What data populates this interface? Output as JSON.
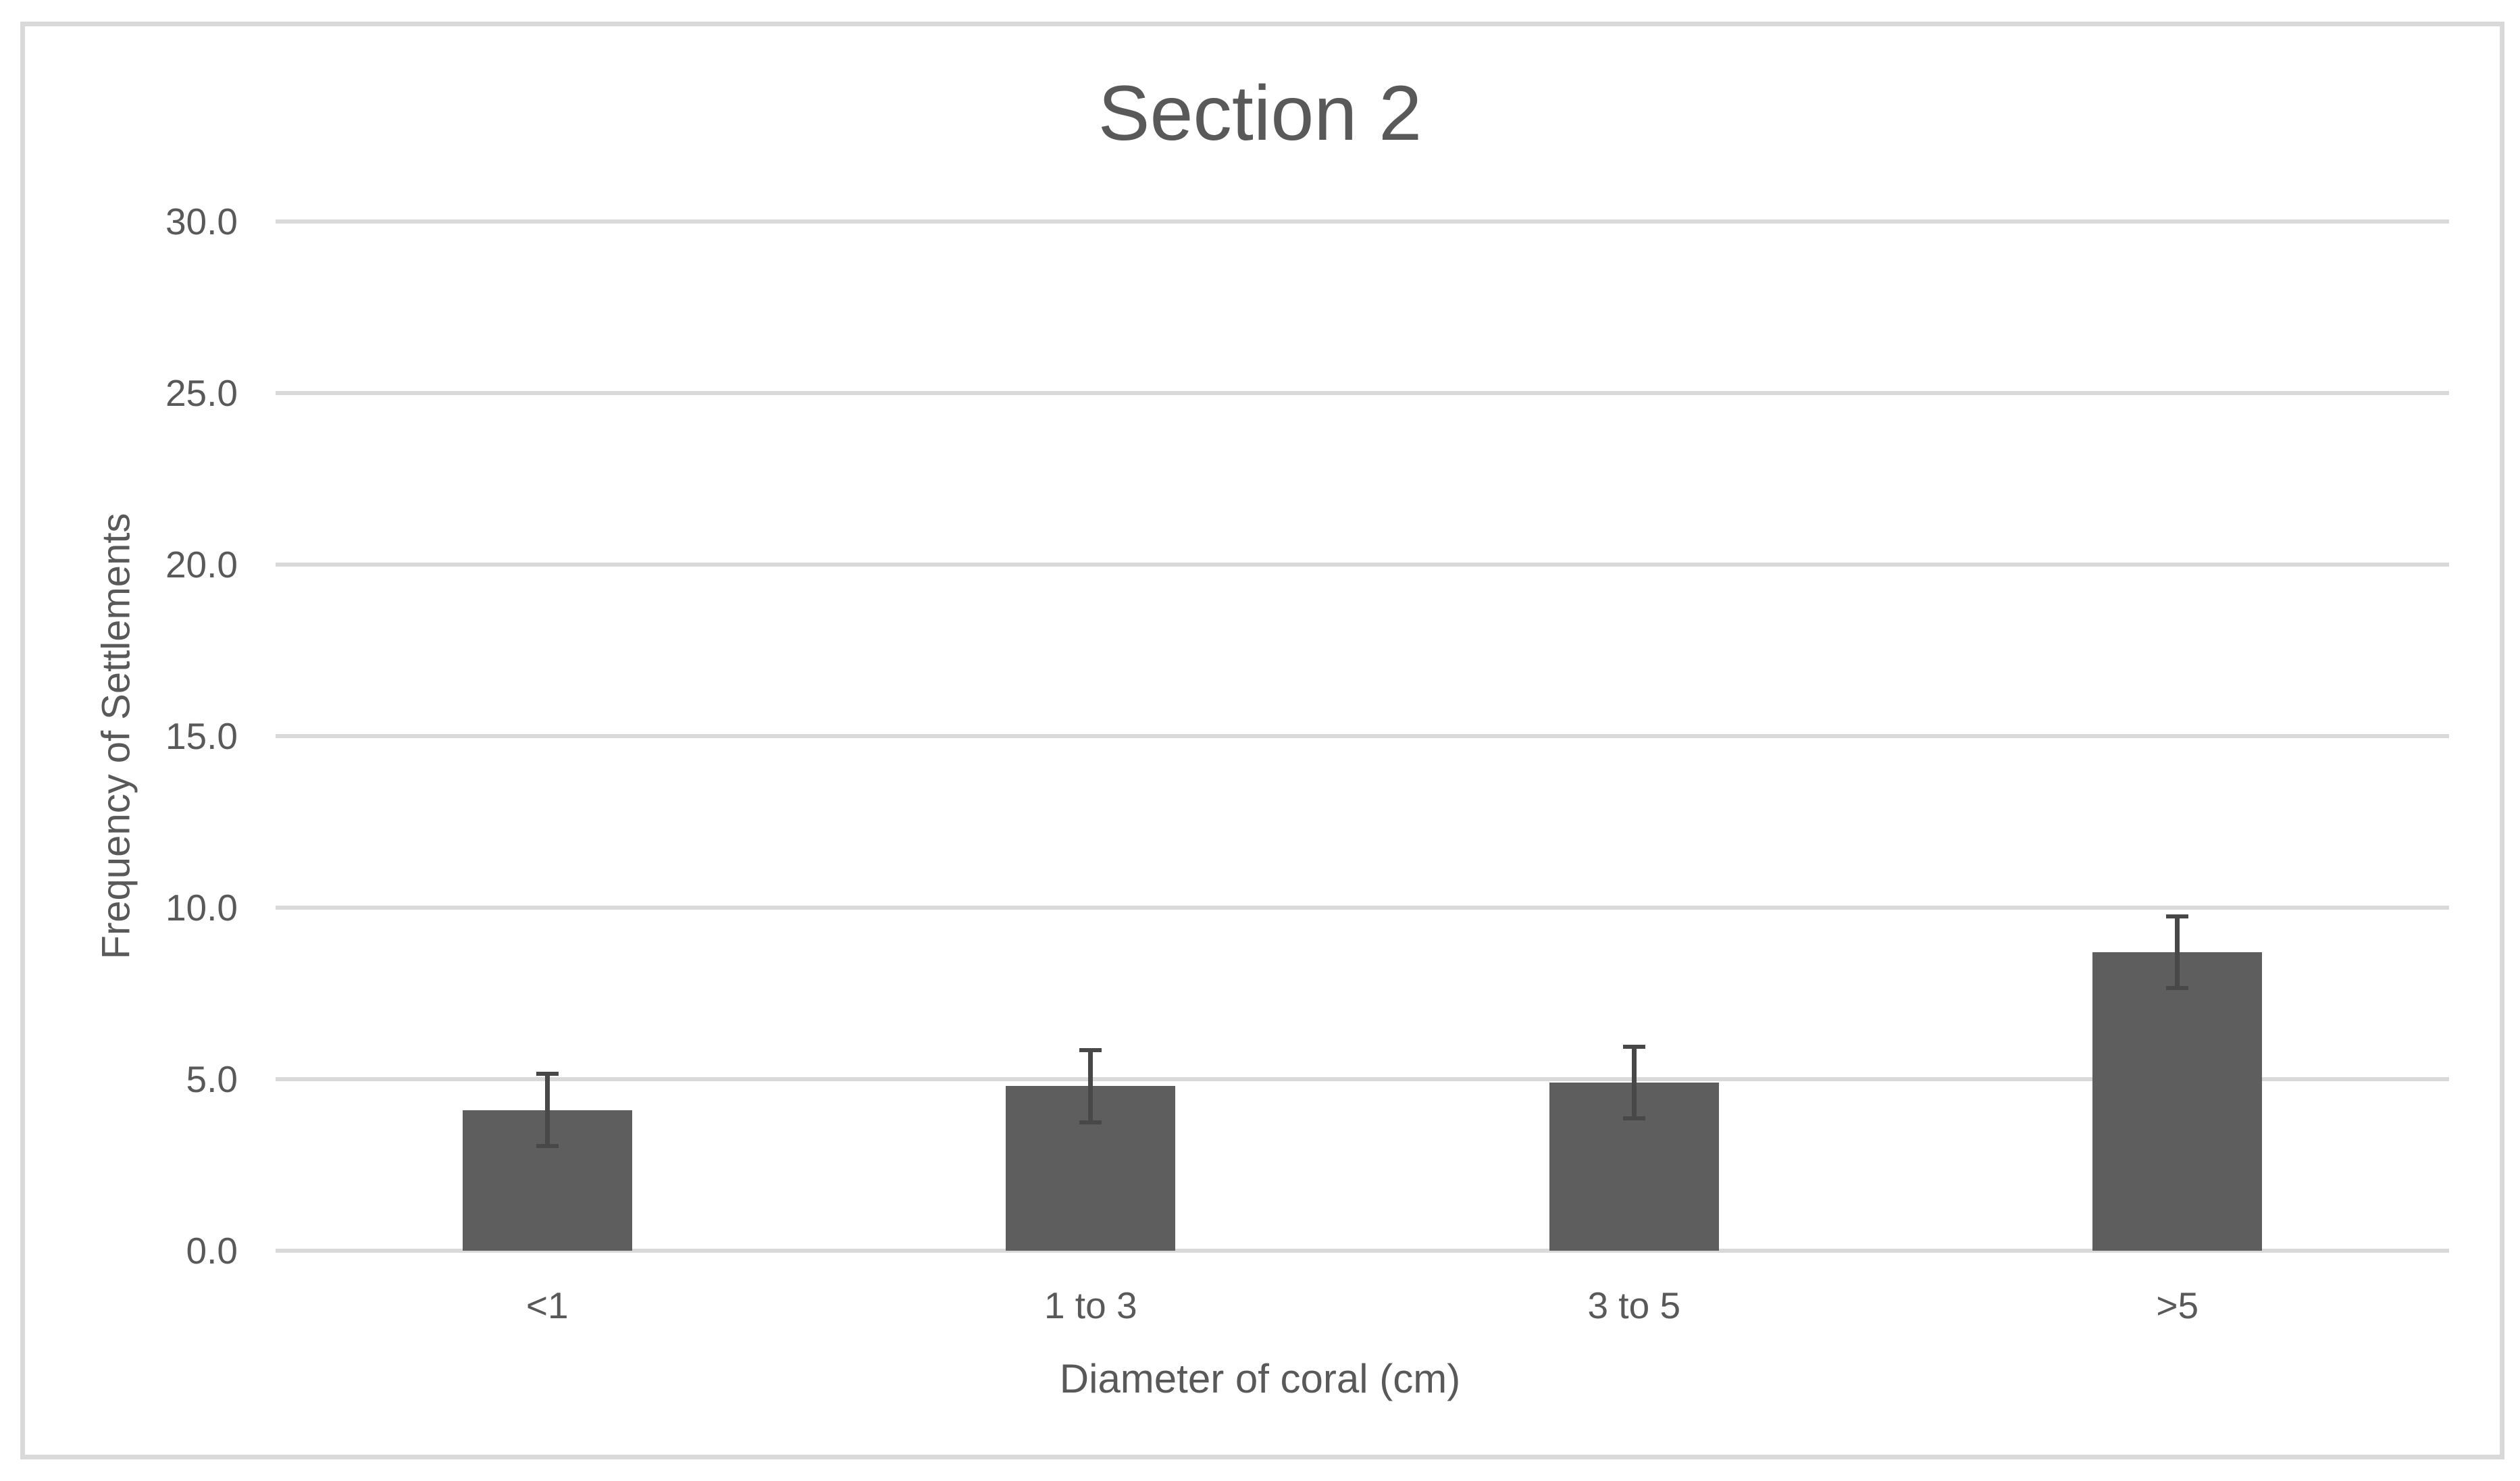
{
  "chart_data": {
    "type": "bar",
    "title": "Section 2",
    "xlabel": "Diameter of coral (cm)",
    "ylabel": "Frequency of Settlements",
    "categories": [
      "<1",
      "1 to 3",
      "3 to 5",
      ">5"
    ],
    "values": [
      4.1,
      4.8,
      4.9,
      8.7
    ],
    "error_bars": [
      1.05,
      1.05,
      1.05,
      1.05
    ],
    "ylim": [
      0,
      30
    ],
    "y_tick_step": 5,
    "y_tick_labels": [
      "0.0",
      "5.0",
      "10.0",
      "15.0",
      "20.0",
      "25.0",
      "30.0"
    ],
    "grid": true,
    "legend": "none",
    "colors": {
      "bar_fill": "#5e5e5e",
      "error_bar": "#484848",
      "gridline": "#d9d9d9",
      "chart_border": "#d9d9d9",
      "text": "#595959",
      "background": "#ffffff"
    }
  }
}
